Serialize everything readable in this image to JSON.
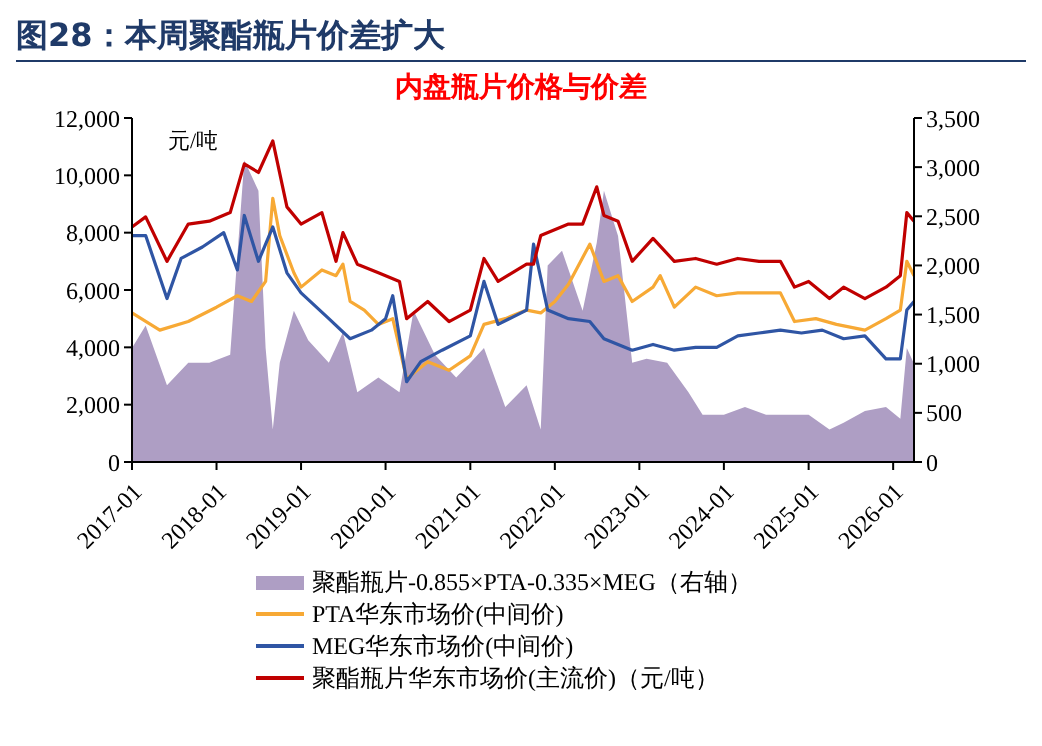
{
  "chart_data": {
    "type": "line",
    "title": "图28：本周聚酯瓶片价差扩大",
    "subtitle": "内盘瓶片价格与价差",
    "annotations": [
      "元/吨"
    ],
    "xlim": [
      "2017-01",
      "2026-04"
    ],
    "xticks": [
      "2017-01",
      "2018-01",
      "2019-01",
      "2020-01",
      "2021-01",
      "2022-01",
      "2023-01",
      "2024-01",
      "2025-01",
      "2026-01"
    ],
    "ylim": [
      0,
      12000
    ],
    "yticks": [
      0,
      {
        "value": 2000,
        "label": "2,000"
      },
      {
        "value": 4000,
        "label": "4,000"
      },
      {
        "value": 6000,
        "label": "6,000"
      },
      {
        "value": 8000,
        "label": "8,000"
      },
      {
        "value": 10000,
        "label": "10,000"
      },
      {
        "value": 12000,
        "label": "12,000"
      }
    ],
    "y2lim": [
      0,
      3500
    ],
    "y2ticks": [
      0,
      500,
      {
        "value": 1000,
        "label": "1,000"
      },
      {
        "value": 1500,
        "label": "1,500"
      },
      {
        "value": 2000,
        "label": "2,000"
      },
      {
        "value": 2500,
        "label": "2,500"
      },
      {
        "value": 3000,
        "label": "3,000"
      },
      {
        "value": 3500,
        "label": "3,500"
      }
    ],
    "grid": false,
    "legend": "bottom",
    "marker": "none",
    "line_style": "solid",
    "series": [
      {
        "name": "聚酯瓶片-0.855×PTA-0.335×MEG（右轴）",
        "type": "area",
        "axis": "y2",
        "color": "#ae9ec4",
        "x": [
          "2017-01",
          "2017-03",
          "2017-06",
          "2017-09",
          "2017-12",
          "2018-03",
          "2018-05",
          "2018-07",
          "2018-08",
          "2018-09",
          "2018-10",
          "2018-12",
          "2019-02",
          "2019-05",
          "2019-07",
          "2019-09",
          "2019-12",
          "2020-03",
          "2020-05",
          "2020-08",
          "2020-11",
          "2021-01",
          "2021-03",
          "2021-06",
          "2021-09",
          "2021-11",
          "2021-12",
          "2022-02",
          "2022-05",
          "2022-07",
          "2022-08",
          "2022-10",
          "2022-12",
          "2023-02",
          "2023-05",
          "2023-08",
          "2023-10",
          "2024-01",
          "2024-04",
          "2024-07",
          "2024-10",
          "2025-01",
          "2025-04",
          "2025-06",
          "2025-09",
          "2025-12",
          "2026-02",
          "2026-03",
          "2026-04"
        ],
        "values": [
          1160,
          1390,
          780,
          1010,
          1010,
          1090,
          3070,
          2760,
          1160,
          330,
          1010,
          1540,
          1240,
          1010,
          1320,
          710,
          860,
          710,
          1540,
          1090,
          860,
          1010,
          1160,
          560,
          780,
          330,
          2000,
          2150,
          1540,
          2230,
          2760,
          2300,
          1010,
          1050,
          1010,
          710,
          480,
          480,
          560,
          480,
          480,
          480,
          330,
          400,
          520,
          560,
          440,
          1160,
          1000
        ]
      },
      {
        "name": "PTA华东市场价(中间价)",
        "color": "#f7a935",
        "x": [
          "2017-01",
          "2017-05",
          "2017-09",
          "2018-01",
          "2018-04",
          "2018-06",
          "2018-08",
          "2018-09",
          "2018-10",
          "2018-12",
          "2019-01",
          "2019-04",
          "2019-06",
          "2019-07",
          "2019-08",
          "2019-10",
          "2019-12",
          "2020-02",
          "2020-04",
          "2020-07",
          "2020-10",
          "2021-01",
          "2021-03",
          "2021-06",
          "2021-09",
          "2021-11",
          "2022-01",
          "2022-03",
          "2022-06",
          "2022-08",
          "2022-10",
          "2022-12",
          "2023-03",
          "2023-04",
          "2023-06",
          "2023-09",
          "2023-12",
          "2024-03",
          "2024-06",
          "2024-09",
          "2024-11",
          "2025-02",
          "2025-05",
          "2025-09",
          "2025-12",
          "2026-02",
          "2026-03",
          "2026-04"
        ],
        "values": [
          5200,
          4600,
          4900,
          5400,
          5800,
          5600,
          6300,
          9200,
          7900,
          6600,
          6100,
          6700,
          6500,
          6900,
          5600,
          5300,
          4800,
          5000,
          2900,
          3500,
          3200,
          3700,
          4800,
          5000,
          5300,
          5200,
          5600,
          6200,
          7600,
          6300,
          6500,
          5600,
          6100,
          6500,
          5400,
          6100,
          5800,
          5900,
          5900,
          5900,
          4900,
          5000,
          4800,
          4600,
          5000,
          5300,
          7000,
          6500
        ]
      },
      {
        "name": "MEG华东市场价(中间价)",
        "color": "#2f55a4",
        "x": [
          "2017-01",
          "2017-03",
          "2017-06",
          "2017-08",
          "2017-11",
          "2018-02",
          "2018-04",
          "2018-05",
          "2018-07",
          "2018-09",
          "2018-11",
          "2019-01",
          "2019-05",
          "2019-08",
          "2019-11",
          "2020-01",
          "2020-02",
          "2020-04",
          "2020-06",
          "2020-09",
          "2021-01",
          "2021-03",
          "2021-05",
          "2021-09",
          "2021-10",
          "2021-12",
          "2022-03",
          "2022-06",
          "2022-08",
          "2022-12",
          "2023-03",
          "2023-06",
          "2023-09",
          "2023-12",
          "2024-03",
          "2024-06",
          "2024-09",
          "2024-12",
          "2025-03",
          "2025-06",
          "2025-09",
          "2025-12",
          "2026-02",
          "2026-03",
          "2026-04"
        ],
        "values": [
          7900,
          7900,
          5700,
          7100,
          7500,
          8000,
          6700,
          8600,
          7000,
          8200,
          6600,
          5900,
          5000,
          4300,
          4600,
          5000,
          5800,
          2800,
          3500,
          3900,
          4400,
          6300,
          4800,
          5300,
          7600,
          5300,
          5000,
          4900,
          4300,
          3900,
          4100,
          3900,
          4000,
          4000,
          4400,
          4500,
          4600,
          4500,
          4600,
          4300,
          4400,
          3600,
          3600,
          5300,
          5600
        ]
      },
      {
        "name": "聚酯瓶片华东市场价(主流价)（元/吨）",
        "color": "#c00000",
        "x": [
          "2017-01",
          "2017-03",
          "2017-06",
          "2017-09",
          "2017-12",
          "2018-03",
          "2018-05",
          "2018-07",
          "2018-09",
          "2018-11",
          "2019-01",
          "2019-04",
          "2019-06",
          "2019-07",
          "2019-09",
          "2019-12",
          "2020-03",
          "2020-04",
          "2020-07",
          "2020-10",
          "2021-01",
          "2021-03",
          "2021-05",
          "2021-09",
          "2021-10",
          "2021-11",
          "2022-03",
          "2022-05",
          "2022-07",
          "2022-08",
          "2022-10",
          "2022-12",
          "2023-03",
          "2023-06",
          "2023-09",
          "2023-12",
          "2024-03",
          "2024-06",
          "2024-09",
          "2024-11",
          "2025-01",
          "2025-04",
          "2025-06",
          "2025-09",
          "2025-12",
          "2026-02",
          "2026-03",
          "2026-04"
        ],
        "values": [
          8200,
          8550,
          7000,
          8300,
          8400,
          8700,
          10400,
          10100,
          11200,
          8900,
          8300,
          8700,
          7000,
          8000,
          6900,
          6600,
          6300,
          5000,
          5600,
          4900,
          5300,
          7100,
          6300,
          6900,
          6900,
          7900,
          8300,
          8300,
          9600,
          8600,
          8400,
          7000,
          7800,
          7000,
          7100,
          6900,
          7100,
          7000,
          7000,
          6100,
          6300,
          5700,
          6100,
          5700,
          6100,
          6500,
          8700,
          8400
        ]
      }
    ]
  }
}
